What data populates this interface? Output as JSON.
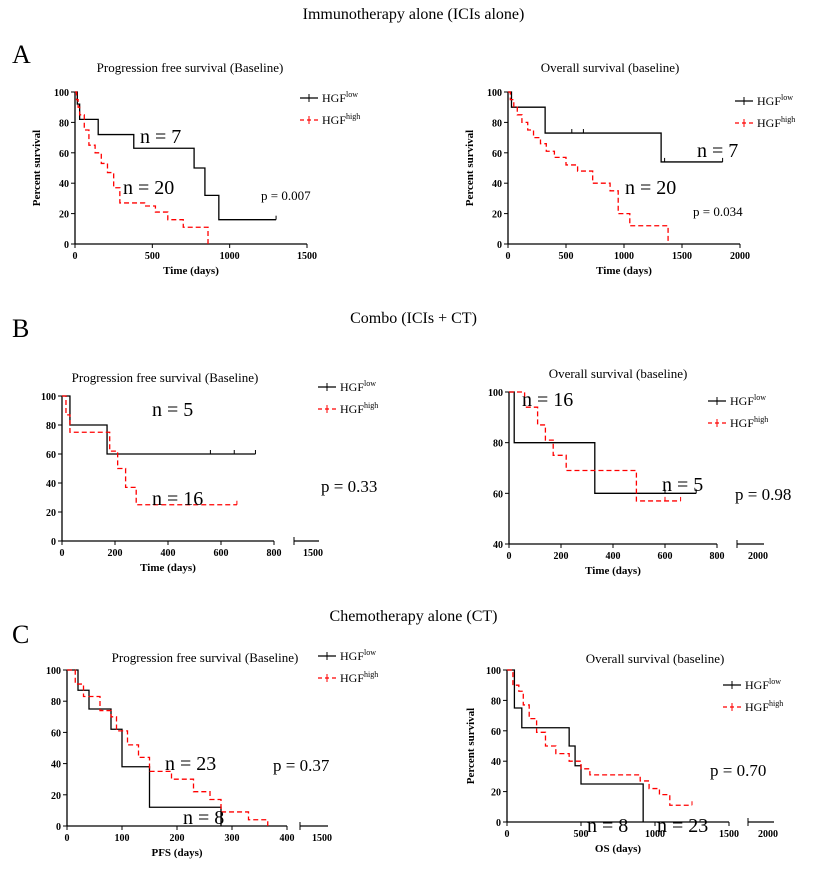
{
  "sections": [
    {
      "letter": "A",
      "title": "Immunotherapy alone (ICIs alone)"
    },
    {
      "letter": "B",
      "title": "Combo (ICIs + CT)"
    },
    {
      "letter": "C",
      "title": "Chemotherapy alone (CT)"
    }
  ],
  "legend": {
    "low_base": "HGF",
    "low_sup": "low",
    "high_base": "HGF",
    "high_sup": "high"
  },
  "colors": {
    "low": "#000000",
    "high": "#ff0000"
  },
  "chart_data": [
    {
      "id": "A-PFS",
      "type": "line",
      "title": "Progression free survival (Baseline)",
      "xlabel": "Time (days)",
      "ylabel": "Percent survival",
      "xlim": [
        0,
        1500
      ],
      "ylim": [
        0,
        100
      ],
      "xticks": [
        0,
        500,
        1000,
        1500
      ],
      "yticks": [
        0,
        20,
        40,
        60,
        80,
        100
      ],
      "annotations": [
        "n = 7",
        "n = 20",
        "p = 0.007"
      ],
      "series": [
        {
          "name": "HGF low",
          "style": "solid",
          "color": "#000000",
          "x": [
            0,
            15,
            30,
            150,
            380,
            770,
            840,
            930,
            1300
          ],
          "y": [
            100,
            92,
            82,
            72,
            63,
            50,
            32,
            16,
            16
          ],
          "censor_x": [
            1300
          ]
        },
        {
          "name": "HGF high",
          "style": "dashed",
          "color": "#ff0000",
          "x": [
            0,
            10,
            20,
            30,
            60,
            90,
            130,
            170,
            210,
            250,
            290,
            450,
            520,
            600,
            700,
            860
          ],
          "y": [
            100,
            95,
            90,
            85,
            75,
            65,
            60,
            53,
            47,
            37,
            27,
            25,
            21,
            16,
            11,
            0
          ],
          "censor_x": []
        }
      ]
    },
    {
      "id": "A-OS",
      "type": "line",
      "title": "Overall survival (baseline)",
      "xlabel": "Time (days)",
      "ylabel": "Percent survival",
      "xlim": [
        0,
        2000
      ],
      "ylim": [
        0,
        100
      ],
      "xticks": [
        0,
        500,
        1000,
        1500,
        2000
      ],
      "yticks": [
        0,
        20,
        40,
        60,
        80,
        100
      ],
      "annotations": [
        "n = 7",
        "n = 20",
        "p = 0.034"
      ],
      "series": [
        {
          "name": "HGF low",
          "style": "solid",
          "color": "#000000",
          "x": [
            0,
            30,
            320,
            1320,
            1850
          ],
          "y": [
            100,
            90,
            73,
            54,
            54
          ],
          "censor_x": [
            550,
            650,
            1350,
            1850
          ]
        },
        {
          "name": "HGF high",
          "style": "dashed",
          "color": "#ff0000",
          "x": [
            0,
            20,
            50,
            80,
            120,
            170,
            220,
            280,
            330,
            400,
            500,
            600,
            730,
            880,
            950,
            1050,
            1380
          ],
          "y": [
            100,
            95,
            90,
            85,
            80,
            75,
            70,
            66,
            61,
            57,
            52,
            48,
            40,
            35,
            20,
            12,
            0
          ],
          "censor_x": []
        }
      ]
    },
    {
      "id": "B-PFS",
      "type": "line",
      "title": "Progression free survival (Baseline)",
      "xlabel": "Time (days)",
      "ylabel": "",
      "xlim": [
        0,
        800
      ],
      "ylim": [
        0,
        100
      ],
      "xticks": [
        0,
        200,
        400,
        600,
        800
      ],
      "extra_tick": "1500",
      "yticks": [
        0,
        20,
        40,
        60,
        80,
        100
      ],
      "annotations": [
        "n = 5",
        "n = 16",
        "p = 0.33"
      ],
      "series": [
        {
          "name": "HGF low",
          "style": "solid",
          "color": "#000000",
          "x": [
            0,
            30,
            170,
            730
          ],
          "y": [
            100,
            80,
            60,
            60
          ],
          "censor_x": [
            560,
            650,
            730
          ]
        },
        {
          "name": "HGF high",
          "style": "dashed",
          "color": "#ff0000",
          "x": [
            0,
            15,
            30,
            180,
            210,
            240,
            280,
            550,
            660
          ],
          "y": [
            100,
            87,
            75,
            62,
            50,
            37,
            25,
            25,
            25
          ],
          "censor_x": [
            660
          ]
        }
      ]
    },
    {
      "id": "B-OS",
      "type": "line",
      "title": "Overall survival (baseline)",
      "xlabel": "Time (days)",
      "ylabel": "",
      "xlim": [
        0,
        800
      ],
      "ylim": [
        40,
        100
      ],
      "xticks": [
        0,
        200,
        400,
        600,
        800
      ],
      "extra_tick": "2000",
      "yticks": [
        40,
        60,
        80,
        100
      ],
      "annotations": [
        "n = 16",
        "n = 5",
        "p = 0.98"
      ],
      "series": [
        {
          "name": "HGF low",
          "style": "solid",
          "color": "#000000",
          "x": [
            0,
            20,
            330,
            720
          ],
          "y": [
            100,
            80,
            60,
            60
          ],
          "censor_x": [
            600,
            720
          ]
        },
        {
          "name": "HGF high",
          "style": "dashed",
          "color": "#ff0000",
          "x": [
            0,
            60,
            110,
            140,
            170,
            220,
            260,
            330,
            390,
            490,
            660
          ],
          "y": [
            100,
            94,
            87,
            81,
            75,
            69,
            69,
            69,
            69,
            57,
            57
          ],
          "censor_x": [
            600,
            660
          ]
        }
      ]
    },
    {
      "id": "C-PFS",
      "type": "line",
      "title": "Progression free survival (Baseline)",
      "xlabel": "PFS (days)",
      "ylabel": "",
      "xlim": [
        0,
        400
      ],
      "ylim": [
        0,
        100
      ],
      "xticks": [
        0,
        100,
        200,
        300,
        400
      ],
      "extra_tick": "1500",
      "yticks": [
        0,
        20,
        40,
        60,
        80,
        100
      ],
      "annotations": [
        "n = 23",
        "n = 8",
        "p = 0.37"
      ],
      "series": [
        {
          "name": "HGF low",
          "style": "solid",
          "color": "#000000",
          "x": [
            0,
            20,
            40,
            80,
            100,
            150,
            280
          ],
          "y": [
            100,
            87,
            75,
            62,
            38,
            12,
            0
          ],
          "censor_x": []
        },
        {
          "name": "HGF high",
          "style": "dashed",
          "color": "#ff0000",
          "x": [
            0,
            15,
            30,
            60,
            80,
            90,
            110,
            130,
            150,
            170,
            190,
            230,
            260,
            280,
            290,
            330,
            365
          ],
          "y": [
            100,
            91,
            83,
            74,
            70,
            61,
            52,
            44,
            35,
            35,
            30,
            22,
            17,
            9,
            9,
            4,
            0
          ],
          "censor_x": []
        }
      ]
    },
    {
      "id": "C-OS",
      "type": "line",
      "title": "Overall survival (baseline)",
      "xlabel": "OS (days)",
      "ylabel": "Percent survival",
      "xlim": [
        0,
        1500
      ],
      "ylim": [
        0,
        100
      ],
      "xticks": [
        0,
        500,
        1000,
        1500
      ],
      "extra_tick": "2000",
      "yticks": [
        0,
        20,
        40,
        60,
        80,
        100
      ],
      "annotations": [
        "n = 8",
        "n = 23",
        "p = 0.70"
      ],
      "series": [
        {
          "name": "HGF low",
          "style": "solid",
          "color": "#000000",
          "x": [
            0,
            50,
            100,
            420,
            460,
            500,
            920
          ],
          "y": [
            100,
            75,
            62,
            50,
            37,
            25,
            0
          ],
          "censor_x": []
        },
        {
          "name": "HGF high",
          "style": "dashed",
          "color": "#ff0000",
          "x": [
            0,
            40,
            80,
            110,
            150,
            200,
            260,
            330,
            420,
            500,
            560,
            700,
            900,
            960,
            1030,
            1100,
            1250
          ],
          "y": [
            100,
            90,
            86,
            77,
            68,
            59,
            50,
            45,
            40,
            35,
            31,
            31,
            27,
            22,
            18,
            11,
            11
          ],
          "censor_x": [
            1250
          ]
        }
      ]
    }
  ]
}
